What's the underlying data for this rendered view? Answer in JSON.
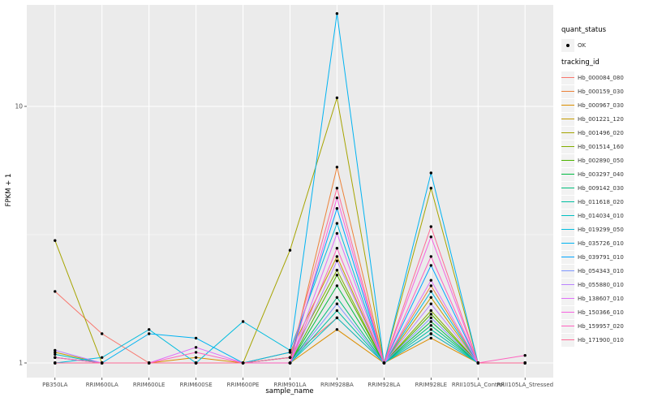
{
  "colors": {
    "panel_bg": "#EBEBEB",
    "grid": "#FFFFFF",
    "key_bg": "#F2F2F2",
    "tick_text": "#4d4d4d",
    "point": "#000000"
  },
  "legend": {
    "quant_status": {
      "title": "quant_status",
      "items": [
        {
          "label": "OK",
          "symbol": "black-point"
        }
      ]
    },
    "tracking": {
      "title": "tracking_id"
    }
  },
  "chart_data": {
    "type": "line",
    "title": "",
    "xlabel": "sample_name",
    "ylabel": "FPKM + 1",
    "yscale": "log10",
    "ylim": [
      0.88,
      25
    ],
    "y_major_ticks": [
      1,
      10
    ],
    "y_minor_gridlines": [
      3.162
    ],
    "grid": true,
    "legend_position": "right",
    "point_style": "filled-black-circle",
    "categories": [
      "PB350LA",
      "RRIM600LA",
      "RRIM600LE",
      "RRIM600SE",
      "RRIM600PE",
      "RRIM901LA",
      "RRIM928BA",
      "RRIM928LA",
      "RRIM928LE",
      "RRII105LA_Control",
      "RRII105LA_Stressed"
    ],
    "series": [
      {
        "name": "Hb_000084_080",
        "color": "#F8766D",
        "values": [
          1.9,
          1.3,
          1.0,
          1.0,
          1.0,
          1.05,
          1.5,
          1.0,
          1.3,
          1.0,
          1.0
        ]
      },
      {
        "name": "Hb_000159_030",
        "color": "#EC8239",
        "values": [
          1.05,
          1.0,
          1.0,
          1.0,
          1.0,
          1.0,
          5.8,
          1.0,
          2.0,
          1.0,
          1.0
        ]
      },
      {
        "name": "Hb_000967_030",
        "color": "#DB8E00",
        "values": [
          1.0,
          1.0,
          1.0,
          1.05,
          1.0,
          1.0,
          1.35,
          1.0,
          1.25,
          1.0,
          1.0
        ]
      },
      {
        "name": "Hb_001221_120",
        "color": "#C49A00",
        "values": [
          1.1,
          1.0,
          1.0,
          1.0,
          1.0,
          1.1,
          2.6,
          1.0,
          1.8,
          1.0,
          1.0
        ]
      },
      {
        "name": "Hb_001496_020",
        "color": "#A6A400",
        "values": [
          3.0,
          1.0,
          1.0,
          1.0,
          1.0,
          2.75,
          10.8,
          1.0,
          4.8,
          1.0,
          1.0
        ]
      },
      {
        "name": "Hb_001514_160",
        "color": "#83AD00",
        "values": [
          1.0,
          1.0,
          1.0,
          1.0,
          1.0,
          1.05,
          2.3,
          1.0,
          1.6,
          1.0,
          1.0
        ]
      },
      {
        "name": "Hb_002890_050",
        "color": "#4CB400",
        "values": [
          1.0,
          1.0,
          1.0,
          1.0,
          1.0,
          1.0,
          2.2,
          1.0,
          1.55,
          1.0,
          1.0
        ]
      },
      {
        "name": "Hb_003297_040",
        "color": "#00BA42",
        "values": [
          1.0,
          1.0,
          1.0,
          1.0,
          1.0,
          1.0,
          2.0,
          1.0,
          1.45,
          1.0,
          1.0
        ]
      },
      {
        "name": "Hb_009142_030",
        "color": "#00BE7C",
        "values": [
          1.05,
          1.0,
          1.0,
          1.0,
          1.0,
          1.0,
          1.8,
          1.0,
          1.4,
          1.0,
          1.0
        ]
      },
      {
        "name": "Hb_011618_020",
        "color": "#00C0A2",
        "values": [
          1.0,
          1.0,
          1.0,
          1.0,
          1.0,
          1.0,
          1.6,
          1.0,
          1.35,
          1.0,
          1.0
        ]
      },
      {
        "name": "Hb_014034_010",
        "color": "#00C0C3",
        "values": [
          1.08,
          1.0,
          1.0,
          1.0,
          1.0,
          1.0,
          1.5,
          1.0,
          1.3,
          1.0,
          1.0
        ]
      },
      {
        "name": "Hb_019299_050",
        "color": "#00BCDE",
        "values": [
          1.0,
          1.05,
          1.35,
          1.0,
          1.45,
          1.12,
          3.5,
          1.0,
          1.9,
          1.0,
          1.0
        ]
      },
      {
        "name": "Hb_035726_010",
        "color": "#00B3F2",
        "values": [
          1.0,
          1.0,
          1.3,
          1.25,
          1.0,
          1.1,
          23.0,
          1.0,
          5.5,
          1.0,
          1.0
        ]
      },
      {
        "name": "Hb_039791_010",
        "color": "#00A5FF",
        "values": [
          1.0,
          1.0,
          1.0,
          1.0,
          1.0,
          1.05,
          4.0,
          1.0,
          2.4,
          1.0,
          1.0
        ]
      },
      {
        "name": "Hb_054343_010",
        "color": "#7E96FF",
        "values": [
          1.0,
          1.0,
          1.0,
          1.0,
          1.0,
          1.0,
          1.7,
          1.0,
          1.5,
          1.0,
          1.0
        ]
      },
      {
        "name": "Hb_055880_010",
        "color": "#B983FF",
        "values": [
          1.12,
          1.0,
          1.0,
          1.0,
          1.0,
          1.0,
          2.5,
          1.0,
          1.7,
          1.0,
          1.0
        ]
      },
      {
        "name": "Hb_138607_010",
        "color": "#DF70F8",
        "values": [
          1.0,
          1.0,
          1.0,
          1.15,
          1.0,
          1.0,
          3.2,
          1.0,
          2.1,
          1.0,
          1.0
        ]
      },
      {
        "name": "Hb_150366_010",
        "color": "#F763E0",
        "values": [
          1.0,
          1.0,
          1.0,
          1.0,
          1.0,
          1.0,
          4.4,
          1.0,
          3.1,
          1.0,
          1.0
        ]
      },
      {
        "name": "Hb_159957_020",
        "color": "#FF62BF",
        "values": [
          1.05,
          1.0,
          1.0,
          1.1,
          1.0,
          1.0,
          2.8,
          1.0,
          2.6,
          1.0,
          1.07
        ]
      },
      {
        "name": "Hb_171900_010",
        "color": "#FF6B97",
        "values": [
          1.0,
          1.0,
          1.0,
          1.0,
          1.0,
          1.05,
          4.8,
          1.0,
          3.4,
          1.0,
          1.0
        ]
      }
    ]
  }
}
